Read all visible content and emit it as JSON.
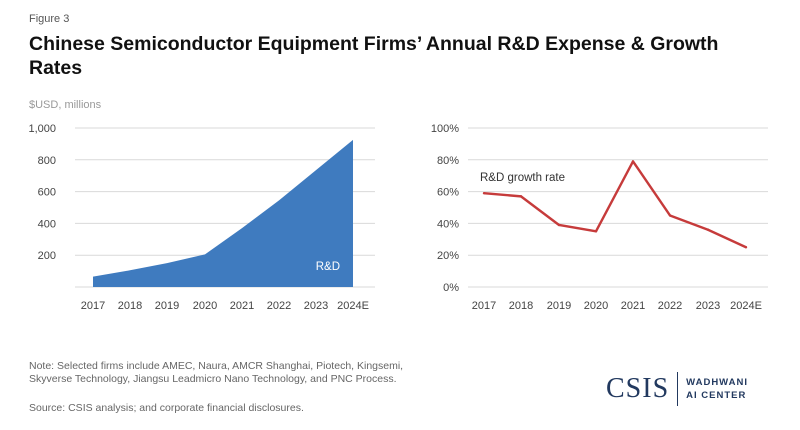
{
  "figure_label": "Figure 3",
  "title": "Chinese Semiconductor Equipment Firms’ Annual R&D Expense & Growth Rates",
  "unit_label": "$USD, millions",
  "note": "Note: Selected firms include AMEC, Naura, AMCR Shanghai, Piotech, Kingsemi, Skyverse Technology, Jiangsu Leadmicro Nano Technology, and PNC Process.",
  "source": "Source: CSIS analysis; and corporate financial disclosures.",
  "logo": {
    "org": "CSIS",
    "line1": "WADHWANI",
    "line2": "AI CENTER"
  },
  "colors": {
    "area": "#3f7bbf",
    "line": "#c63b3b",
    "grid": "#d9d9d9"
  },
  "chart_data": [
    {
      "type": "area",
      "categories": [
        "2017",
        "2018",
        "2019",
        "2020",
        "2021",
        "2022",
        "2023",
        "2024E"
      ],
      "series": [
        {
          "name": "R&D",
          "values": [
            65,
            105,
            150,
            205,
            370,
            545,
            735,
            925
          ]
        }
      ],
      "ylim": [
        0,
        1000
      ],
      "yticks": [
        200,
        400,
        600,
        800,
        1000
      ],
      "ytick_labels": [
        "200",
        "400",
        "600",
        "800",
        "1,000"
      ],
      "ylabel": "$USD, millions",
      "grid": true
    },
    {
      "type": "line",
      "categories": [
        "2017",
        "2018",
        "2019",
        "2020",
        "2021",
        "2022",
        "2023",
        "2024E"
      ],
      "series": [
        {
          "name": "R&D growth rate",
          "values": [
            59,
            57,
            39,
            35,
            79,
            45,
            36,
            25
          ]
        }
      ],
      "ylim": [
        0,
        100
      ],
      "yticks": [
        0,
        20,
        40,
        60,
        80,
        100
      ],
      "ytick_labels": [
        "0%",
        "20%",
        "40%",
        "60%",
        "80%",
        "100%"
      ],
      "grid": true
    }
  ]
}
